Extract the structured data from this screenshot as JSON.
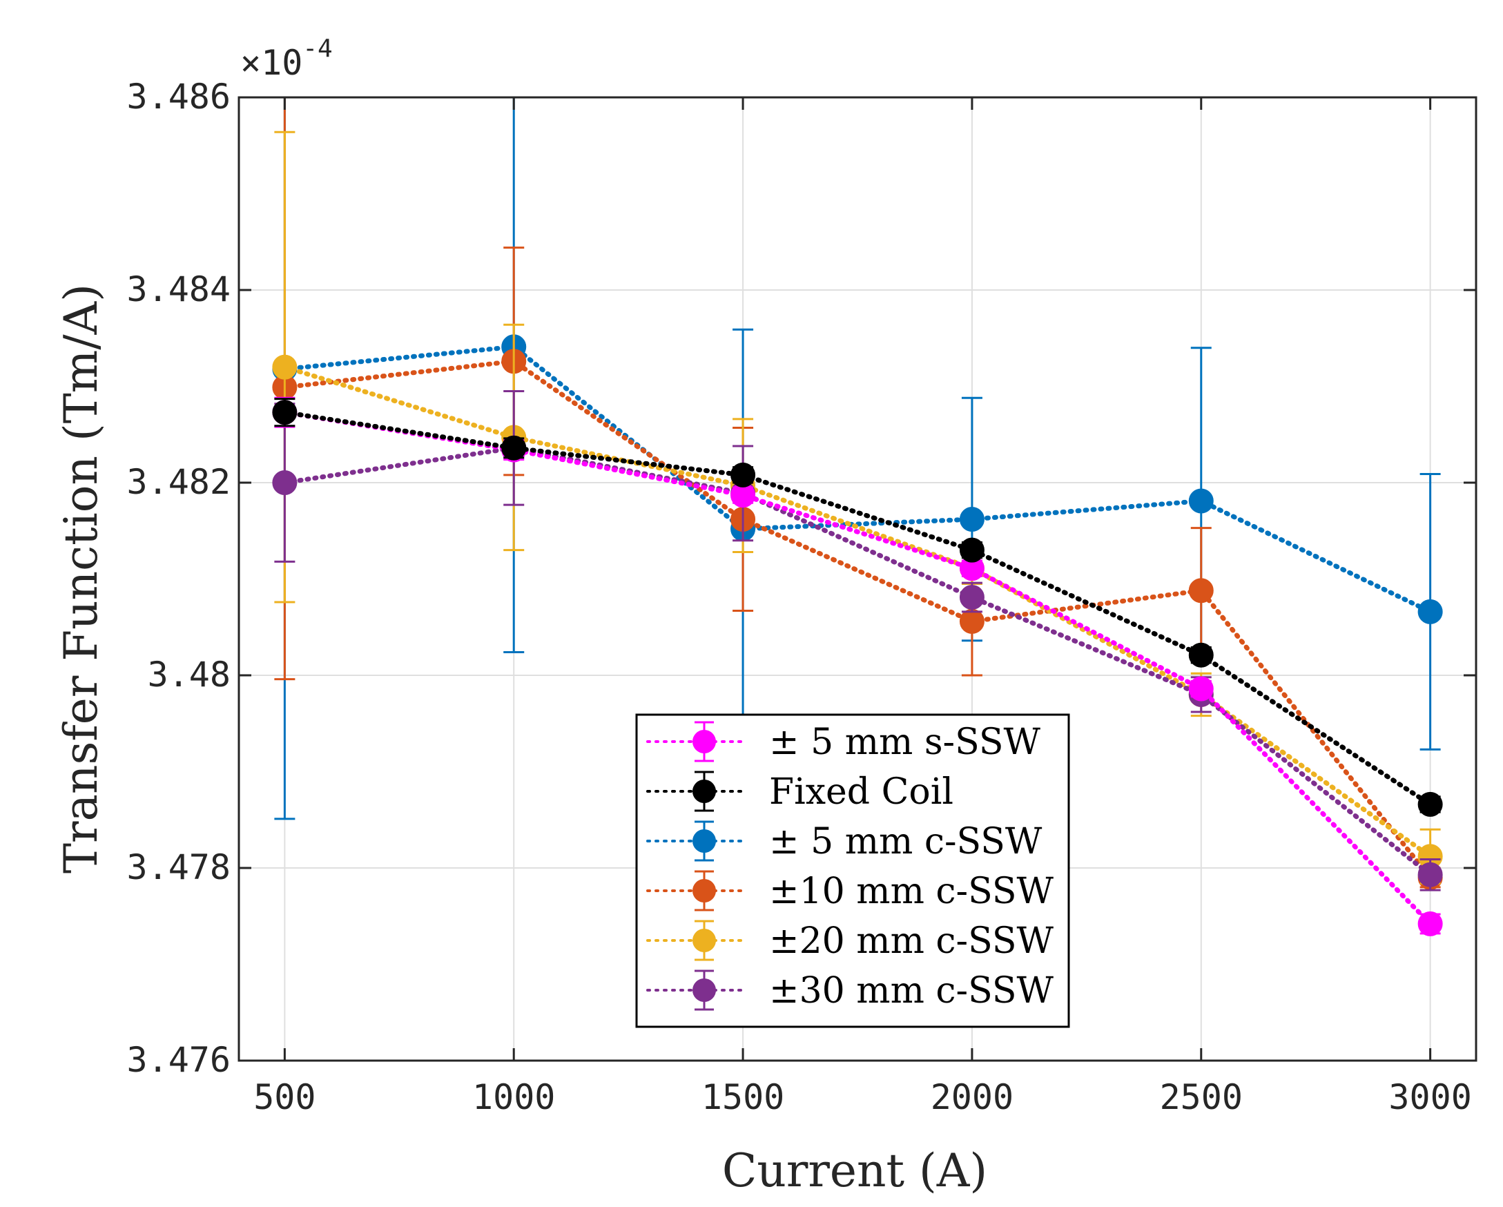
{
  "chart_data": {
    "type": "line",
    "title": "",
    "xlabel": "Current (A)",
    "ylabel": "Transfer Function (Tm/A)",
    "y_exponent_label": "×10",
    "y_exponent_power": "-4",
    "x": [
      500,
      1000,
      1500,
      2000,
      2500,
      3000
    ],
    "xlim": [
      400,
      3100
    ],
    "ylim": [
      3.476,
      3.486
    ],
    "x_ticks": [
      500,
      1000,
      1500,
      2000,
      2500,
      3000
    ],
    "x_tick_labels": [
      "500",
      "1000",
      "1500",
      "2000",
      "2500",
      "3000"
    ],
    "y_ticks": [
      3.476,
      3.478,
      3.48,
      3.482,
      3.484,
      3.486
    ],
    "y_tick_labels": [
      "3.476",
      "3.478",
      "3.48",
      "3.482",
      "3.484",
      "3.486"
    ],
    "grid": true,
    "legend_position": "bottom-right",
    "series": [
      {
        "name": "± 5 mm c-SSW",
        "color": "#0072BD",
        "values": [
          3.48318,
          3.48341,
          3.48152,
          3.48162,
          3.48181,
          3.48066
        ],
        "errors": [
          0.00467,
          0.00317,
          0.00207,
          0.00126,
          0.00159,
          0.00143
        ]
      },
      {
        "name": "±10 mm c-SSW",
        "color": "#D95319",
        "values": [
          3.48299,
          3.48326,
          3.48162,
          3.48056,
          3.48088,
          3.4779
        ],
        "errors": [
          0.00303,
          0.00118,
          0.00095,
          0.00056,
          0.00065,
          0.0001
        ]
      },
      {
        "name": "±20 mm c-SSW",
        "color": "#EDB120",
        "values": [
          3.4832,
          3.48247,
          3.48197,
          3.48111,
          3.4798,
          3.47812
        ],
        "errors": [
          0.00244,
          0.00117,
          0.00069,
          0.00016,
          0.00022,
          0.00028
        ]
      },
      {
        "name": "±30 mm c-SSW",
        "color": "#7E2F8E",
        "values": [
          3.482,
          3.48236,
          3.48189,
          3.48081,
          3.4798,
          3.47793
        ],
        "errors": [
          0.00082,
          0.00059,
          0.00049,
          0.00015,
          0.00018,
          0.00016
        ]
      },
      {
        "name": "± 5 mm s-SSW",
        "color": "#FF00FF",
        "values": [
          3.48273,
          3.48234,
          3.48187,
          3.48111,
          3.47986,
          3.47742
        ],
        "errors": [
          0.00015,
          0.0001,
          8e-05,
          8e-05,
          8e-05,
          0.0001
        ]
      },
      {
        "name": "Fixed Coil",
        "color": "#000000",
        "values": [
          3.48273,
          3.48236,
          3.48208,
          3.4813,
          3.48021,
          3.47866
        ],
        "errors": [
          0.00014,
          0.0001,
          8e-05,
          8e-05,
          8e-05,
          8e-05
        ]
      }
    ],
    "legend_order": [
      "± 5 mm s-SSW",
      "Fixed Coil",
      "± 5 mm c-SSW",
      "±10 mm c-SSW",
      "±20 mm c-SSW",
      "±30 mm c-SSW"
    ]
  }
}
